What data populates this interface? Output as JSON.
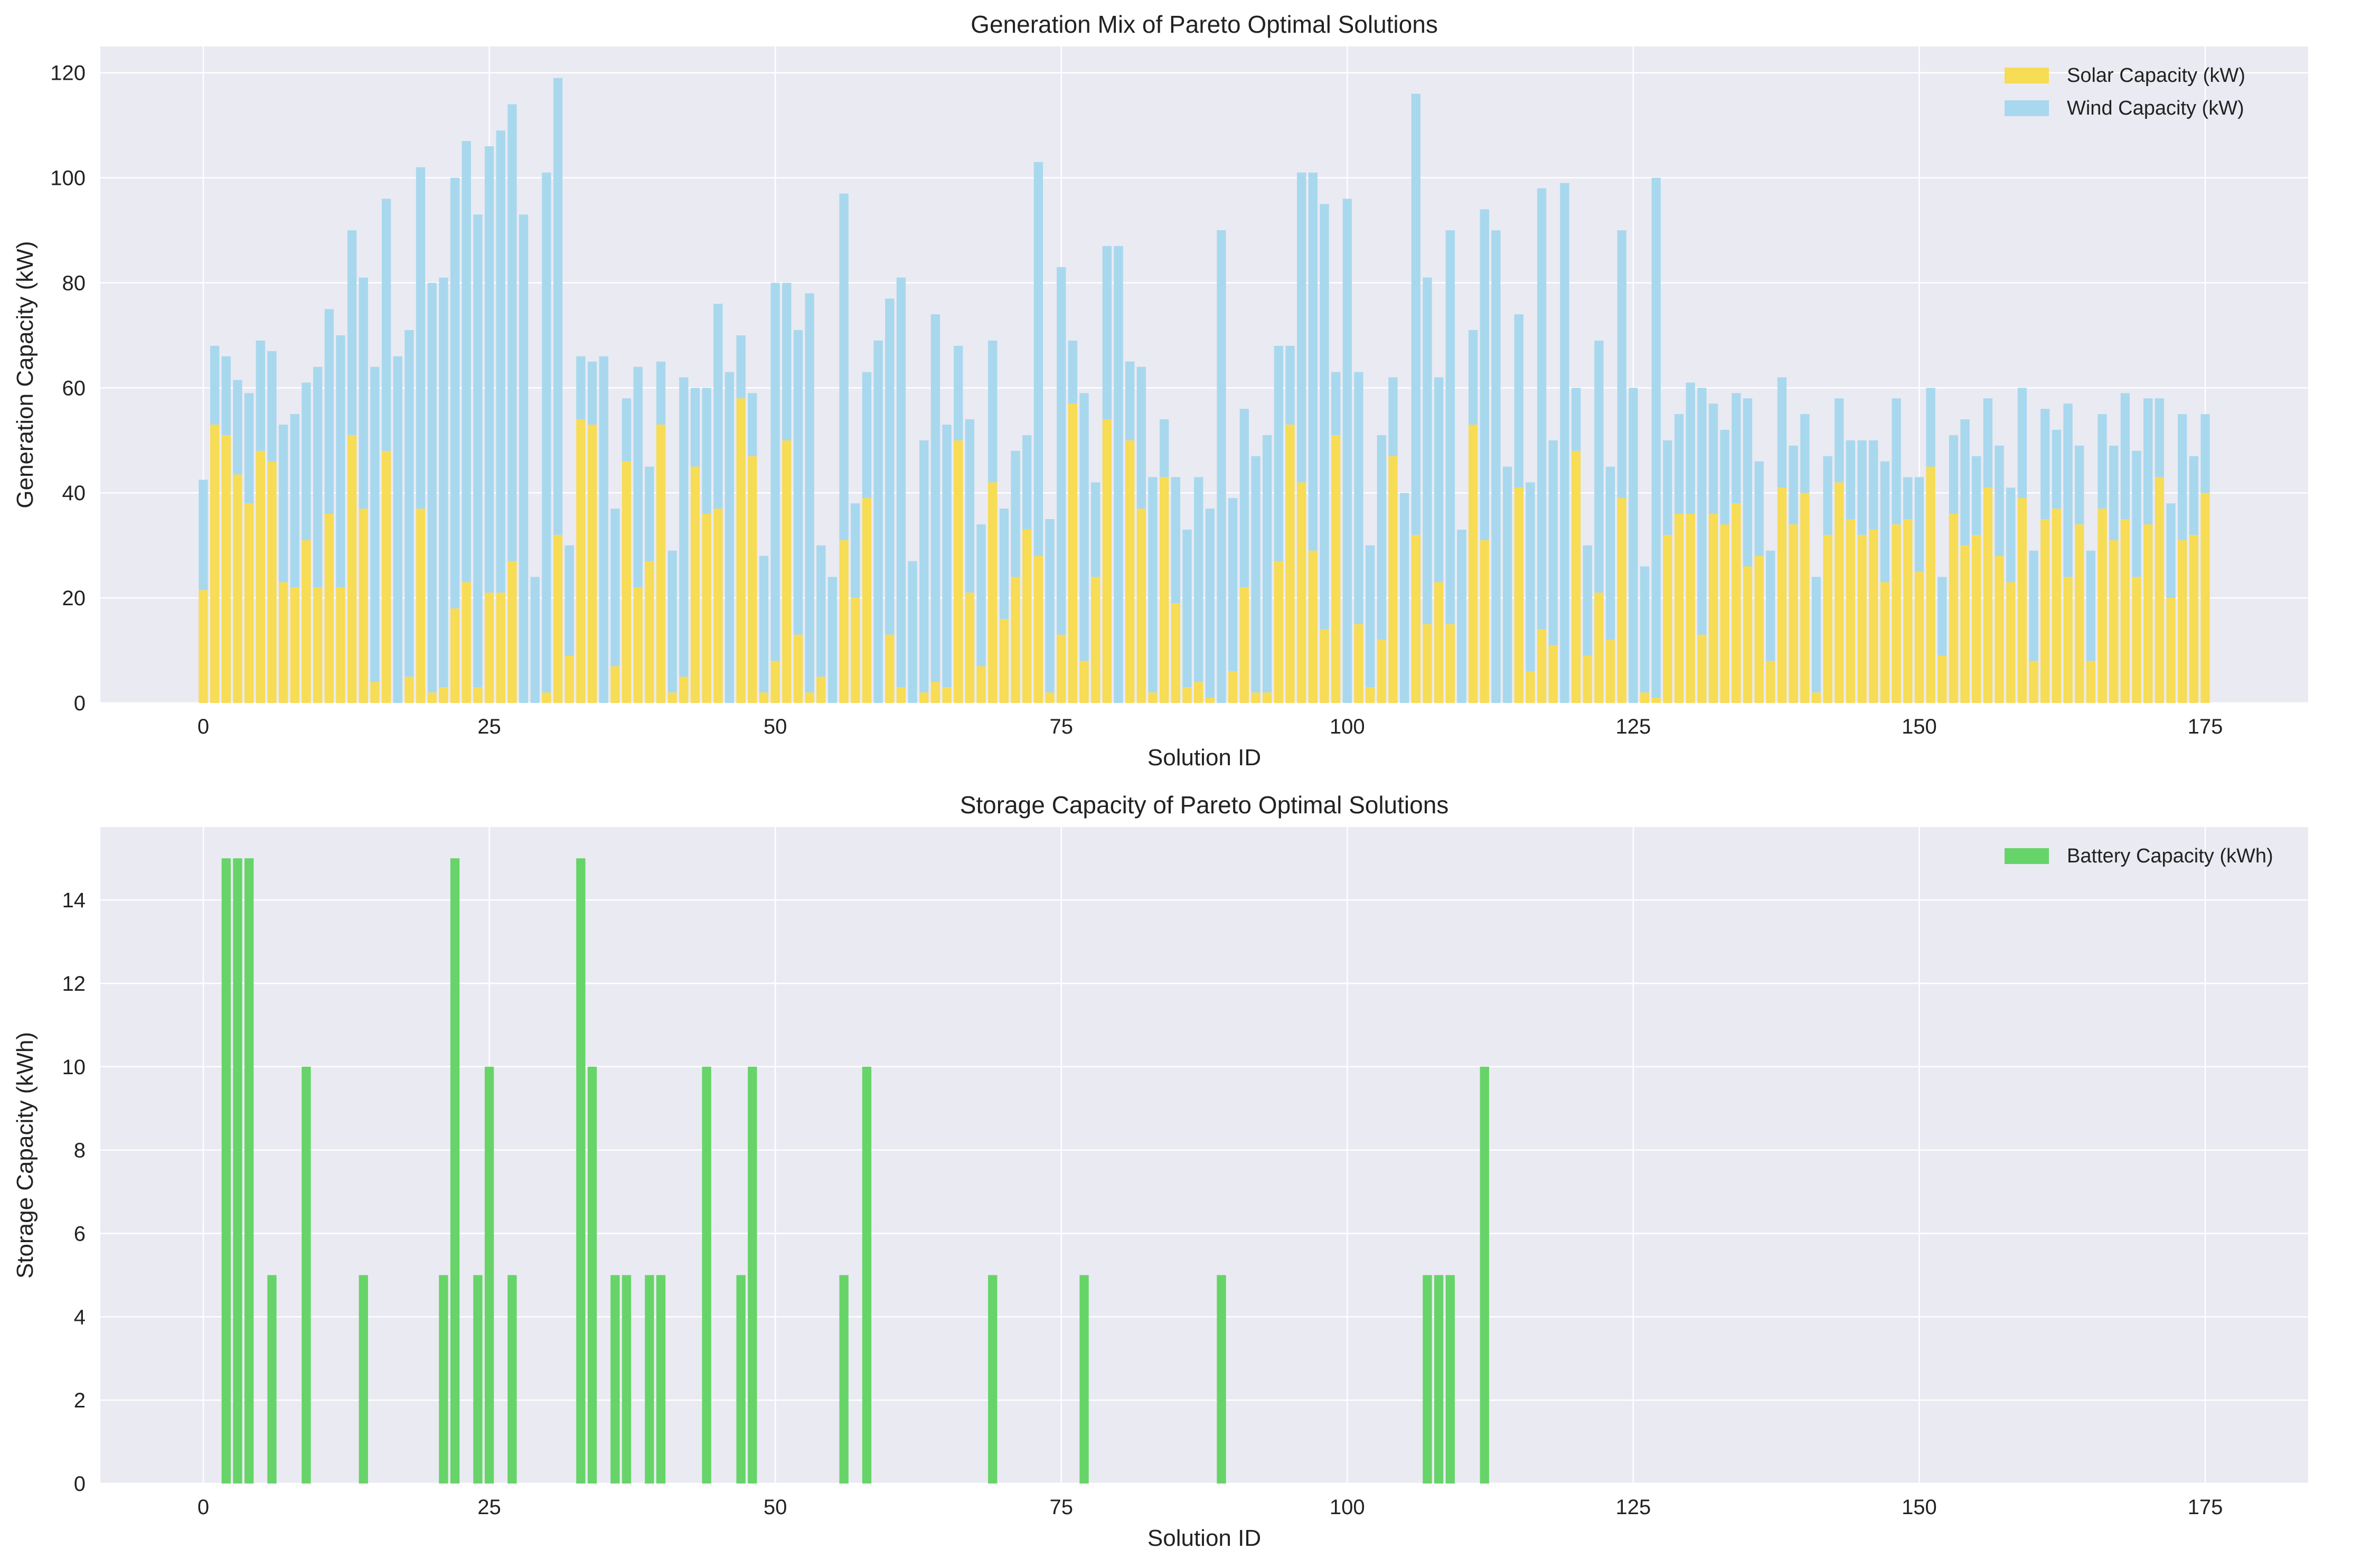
{
  "colors": {
    "background": "#EAEAF2",
    "grid": "#FFFFFF",
    "solar": "#F7DC55",
    "wind": "#A8D8EE",
    "battery": "#66D468"
  },
  "chart_data": [
    {
      "type": "bar",
      "stacked": true,
      "title": "Generation Mix of Pareto Optimal Solutions",
      "xlabel": "Solution ID",
      "ylabel": "Generation Capacity (kW)",
      "xlim": [
        -9,
        184
      ],
      "ylim": [
        0,
        125
      ],
      "xticks": [
        0,
        25,
        50,
        75,
        100,
        125,
        150,
        175
      ],
      "yticks": [
        0,
        20,
        40,
        60,
        80,
        100,
        120
      ],
      "grid": true,
      "legend_position": "top-right",
      "x_start": 0,
      "series": [
        {
          "name": "Solar Capacity (kW)",
          "color": "solar",
          "values": [
            21.5,
            53,
            51,
            43.5,
            38,
            48,
            46,
            23,
            22,
            31,
            22,
            36,
            22,
            51,
            37,
            4,
            48,
            0,
            5,
            37,
            2,
            3,
            18,
            23,
            3,
            21,
            21,
            27,
            0,
            0,
            2,
            32,
            9,
            54,
            53,
            0,
            7,
            46,
            22,
            27,
            53,
            2,
            5,
            45,
            36,
            37,
            0,
            58,
            47,
            2,
            8,
            50,
            13,
            2,
            5,
            0,
            31,
            20,
            39,
            0,
            13,
            3,
            0,
            2,
            4,
            3,
            50,
            21,
            7,
            42,
            16,
            24,
            33,
            28,
            2,
            13,
            57,
            8,
            24,
            54,
            0,
            50,
            37,
            2,
            43,
            19,
            3,
            4,
            1,
            0,
            6,
            22,
            2,
            2,
            27,
            53,
            42,
            29,
            14,
            51,
            0,
            15,
            3,
            12,
            47,
            0,
            32,
            15,
            23,
            15,
            0,
            53,
            31,
            0,
            0,
            41,
            6,
            14,
            11,
            0,
            48,
            9,
            21,
            12,
            39,
            0,
            2,
            1,
            32,
            36,
            36,
            13,
            36,
            34,
            38,
            26,
            28,
            8,
            41,
            34,
            40,
            2,
            32,
            42,
            35,
            32,
            33,
            23,
            34,
            35,
            25,
            45,
            9,
            36,
            30,
            32,
            41,
            28,
            23,
            39,
            8,
            35,
            37,
            24,
            34,
            8,
            37,
            31,
            35,
            24,
            34,
            43,
            20,
            31,
            32,
            40
          ]
        },
        {
          "name": "Wind Capacity (kW)",
          "color": "wind",
          "values": [
            21,
            15,
            15,
            18,
            21,
            21,
            21,
            30,
            33,
            30,
            42,
            39,
            48,
            39,
            44,
            60,
            48,
            66,
            66,
            65,
            78,
            78,
            82,
            84,
            90,
            85,
            88,
            87,
            93,
            24,
            99,
            87,
            21,
            12,
            12,
            66,
            30,
            12,
            42,
            18,
            12,
            27,
            57,
            15,
            24,
            39,
            63,
            12,
            12,
            26,
            72,
            30,
            58,
            76,
            25,
            24,
            66,
            18,
            24,
            69,
            64,
            78,
            27,
            48,
            70,
            50,
            18,
            33,
            27,
            27,
            21,
            24,
            18,
            75,
            33,
            70,
            12,
            51,
            18,
            33,
            87,
            15,
            27,
            41,
            11,
            24,
            30,
            39,
            36,
            90,
            33,
            34,
            45,
            49,
            41,
            15,
            59,
            72,
            81,
            12,
            96,
            48,
            27,
            39,
            15,
            40,
            84,
            66,
            39,
            75,
            33,
            18,
            63,
            90,
            45,
            33,
            36,
            84,
            39,
            99,
            12,
            21,
            48,
            33,
            51,
            60,
            24,
            99,
            18,
            19,
            25,
            47,
            21,
            18,
            21,
            32,
            18,
            21,
            21,
            15,
            15,
            22,
            15,
            16,
            15,
            18,
            17,
            23,
            24,
            8,
            18,
            15,
            15,
            15,
            24,
            15,
            17,
            21,
            18,
            21,
            21,
            21,
            15,
            33,
            15,
            21,
            18,
            18,
            24,
            24,
            24,
            15,
            18,
            24,
            15,
            15
          ]
        }
      ]
    },
    {
      "type": "bar",
      "title": "Storage Capacity of Pareto Optimal Solutions",
      "xlabel": "Solution ID",
      "ylabel": "Storage Capacity (kWh)",
      "xlim": [
        -9,
        184
      ],
      "ylim": [
        0,
        15.75
      ],
      "xticks": [
        0,
        25,
        50,
        75,
        100,
        125,
        150,
        175
      ],
      "yticks": [
        0,
        2,
        4,
        6,
        8,
        10,
        12,
        14
      ],
      "grid": true,
      "legend_position": "top-right",
      "x_start": 0,
      "series": [
        {
          "name": "Battery Capacity (kWh)",
          "color": "battery",
          "values": [
            0,
            0,
            15,
            15,
            15,
            0,
            5,
            0,
            0,
            10,
            0,
            0,
            0,
            0,
            5,
            0,
            0,
            0,
            0,
            0,
            0,
            5,
            15,
            0,
            5,
            10,
            0,
            5,
            0,
            0,
            0,
            0,
            0,
            15,
            10,
            0,
            5,
            5,
            0,
            5,
            5,
            0,
            0,
            0,
            10,
            0,
            0,
            5,
            10,
            0,
            0,
            0,
            0,
            0,
            0,
            0,
            5,
            0,
            10,
            0,
            0,
            0,
            0,
            0,
            0,
            0,
            0,
            0,
            0,
            5,
            0,
            0,
            0,
            0,
            0,
            0,
            0,
            5,
            0,
            0,
            0,
            0,
            0,
            0,
            0,
            0,
            0,
            0,
            0,
            5,
            0,
            0,
            0,
            0,
            0,
            0,
            0,
            0,
            0,
            0,
            0,
            0,
            0,
            0,
            0,
            0,
            0,
            5,
            5,
            5,
            0,
            0,
            10,
            0,
            0,
            0,
            0,
            0,
            0,
            0,
            0,
            0,
            0,
            0,
            0,
            0,
            0,
            0,
            0,
            0,
            0,
            0,
            0,
            0,
            0,
            0,
            0,
            0,
            0,
            0,
            0,
            0,
            0,
            0,
            0,
            0,
            0,
            0,
            0,
            0,
            0,
            0,
            0,
            0,
            0,
            0,
            0,
            0,
            0,
            0,
            0,
            0,
            0,
            0,
            0,
            0,
            0,
            0,
            0,
            0,
            0,
            0,
            0,
            0,
            0,
            0
          ]
        }
      ]
    }
  ]
}
